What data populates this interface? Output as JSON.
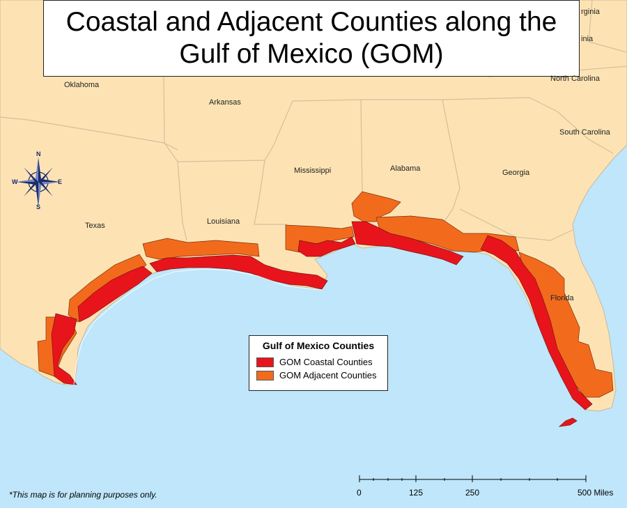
{
  "title": {
    "line1": "Coastal and Adjacent Counties along the",
    "line2": "Gulf of Mexico (GOM)"
  },
  "states": [
    {
      "id": "oklahoma",
      "name": "Oklahoma"
    },
    {
      "id": "arkansas",
      "name": "Arkansas"
    },
    {
      "id": "texas",
      "name": "Texas"
    },
    {
      "id": "louisiana",
      "name": "Louisiana"
    },
    {
      "id": "mississippi",
      "name": "Mississippi"
    },
    {
      "id": "alabama",
      "name": "Alabama"
    },
    {
      "id": "georgia",
      "name": "Georgia"
    },
    {
      "id": "florida",
      "name": "Florida"
    },
    {
      "id": "south-carolina",
      "name": "South Carolina"
    },
    {
      "id": "north-carolina",
      "name": "North Carolina"
    },
    {
      "id": "virginia-partial",
      "name": "rginia"
    },
    {
      "id": "west-virginia-partial",
      "name": "inia"
    }
  ],
  "legend": {
    "title": "Gulf of Mexico Counties",
    "items": [
      {
        "label": "GOM Coastal Counties",
        "color": "#e8141c"
      },
      {
        "label": "GOM Adjacent Counties",
        "color": "#f26b1d"
      }
    ]
  },
  "scale_bar": {
    "labels": [
      "0",
      "125",
      "250",
      "500 Miles"
    ],
    "values": [
      0,
      125,
      250,
      500
    ]
  },
  "compass": {
    "n": "N",
    "s": "S",
    "e": "E",
    "w": "W"
  },
  "disclaimer": "*This map is for planning purposes only.",
  "colors": {
    "water": "#bfe6fa",
    "land": "#fde3b4",
    "coastal": "#e8141c",
    "adjacent": "#f26b1d",
    "border": "#c8b89a"
  }
}
